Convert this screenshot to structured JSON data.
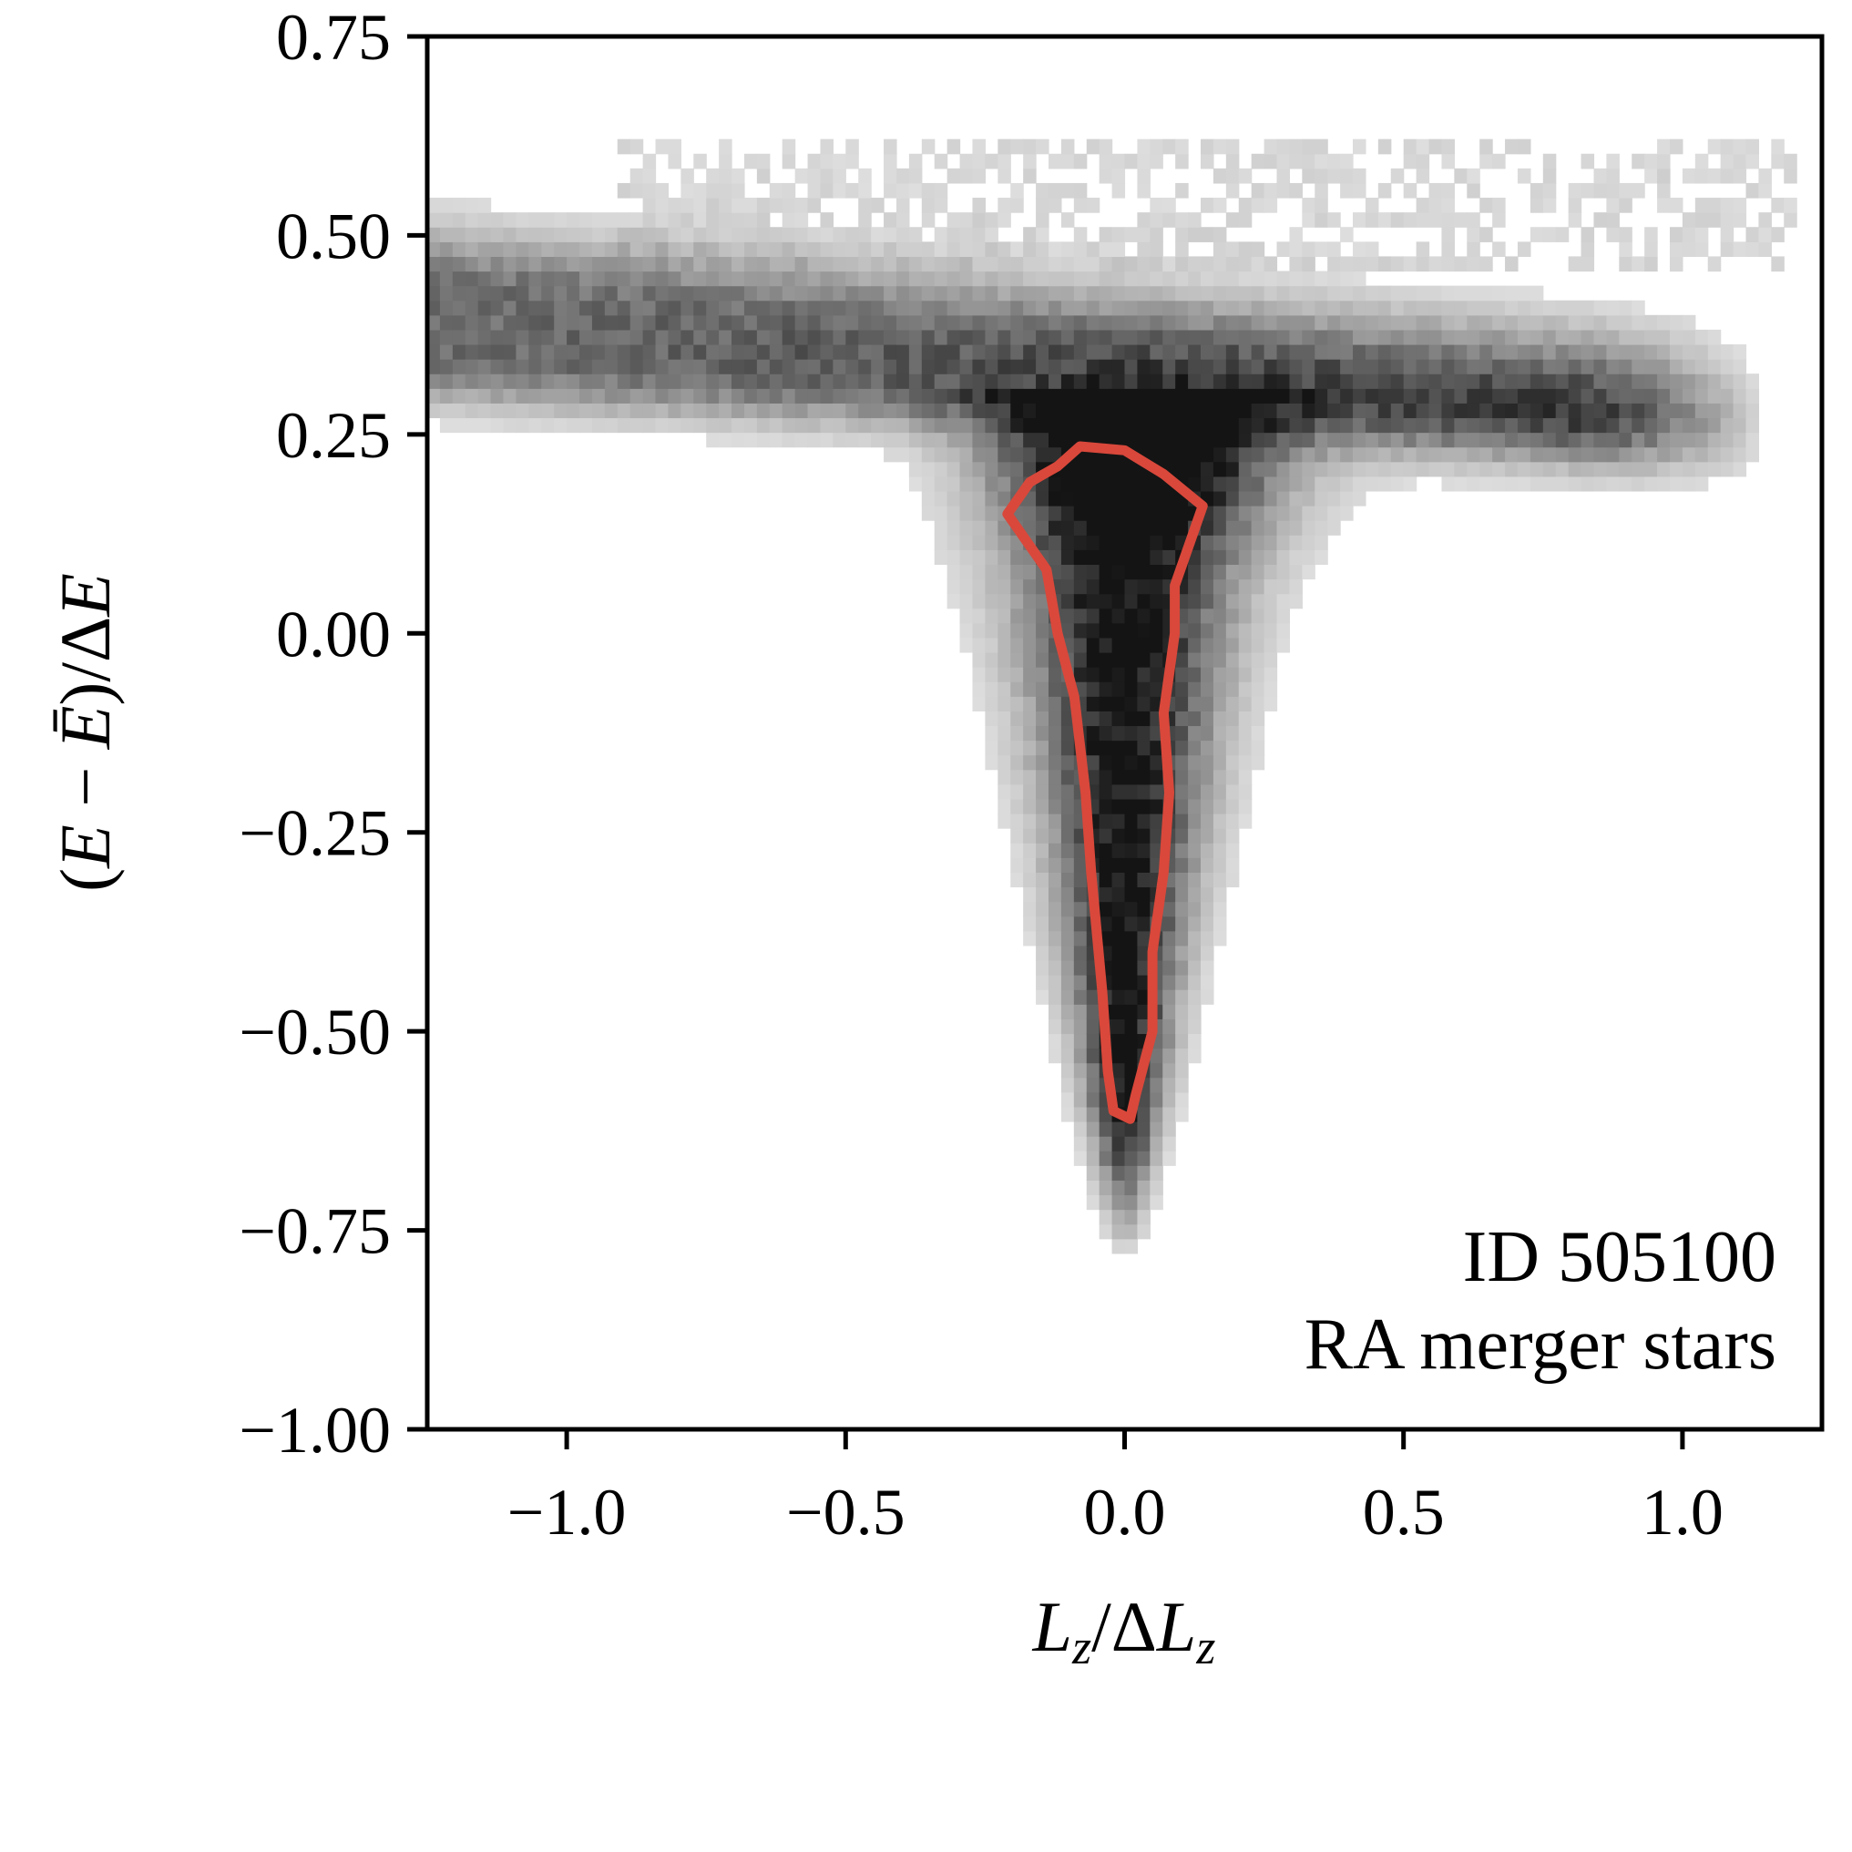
{
  "chart_data": {
    "type": "heatmap",
    "title": "",
    "xlabel_parts": {
      "base": "L",
      "sub": "z",
      "sep": "/Δ",
      "base2": "L",
      "sub2": "z"
    },
    "ylabel_parts": {
      "open": "(",
      "E": "E",
      "minus": " − ",
      "Ebar": "Ē",
      "close": ")/Δ",
      "E2": "E"
    },
    "xlim": [
      -1.25,
      1.25
    ],
    "ylim": [
      -1.0,
      0.75
    ],
    "xticks": [
      -1.0,
      -0.5,
      0.0,
      0.5,
      1.0
    ],
    "xtick_labels": [
      "−1.0",
      "−0.5",
      "0.0",
      "0.5",
      "1.0"
    ],
    "yticks": [
      0.75,
      0.5,
      0.25,
      0.0,
      -0.25,
      -0.5,
      -0.75,
      -1.0
    ],
    "ytick_labels": [
      "0.75",
      "0.50",
      "0.25",
      "0.00",
      "−0.25",
      "−0.50",
      "−0.75",
      "−1.00"
    ],
    "grid": false,
    "colormap": "greys",
    "contour_color": "#d9483b",
    "annotations": [
      "ID 505100",
      "RA merger stars"
    ],
    "density_regions": [
      {
        "name": "vertical stem",
        "x_center": 0.0,
        "y_range": [
          -0.75,
          0.25
        ],
        "density": "high"
      },
      {
        "name": "upper band",
        "x_range": [
          -1.25,
          0.95
        ],
        "y_range": [
          0.25,
          0.6
        ],
        "density": "medium"
      }
    ],
    "contour": {
      "x": [
        -0.08,
        0.0,
        0.07,
        0.14,
        0.12,
        0.09,
        0.09,
        0.07,
        0.08,
        0.07,
        0.05,
        0.05,
        0.02,
        0.01,
        -0.02,
        -0.03,
        -0.04,
        -0.06,
        -0.07,
        -0.09,
        -0.12,
        -0.14,
        -0.21,
        -0.17,
        -0.12,
        -0.08
      ],
      "y": [
        0.235,
        0.23,
        0.2,
        0.16,
        0.12,
        0.06,
        0.0,
        -0.1,
        -0.2,
        -0.3,
        -0.4,
        -0.5,
        -0.58,
        -0.61,
        -0.6,
        -0.55,
        -0.45,
        -0.3,
        -0.2,
        -0.08,
        0.0,
        0.08,
        0.15,
        0.19,
        0.21,
        0.235
      ]
    }
  }
}
